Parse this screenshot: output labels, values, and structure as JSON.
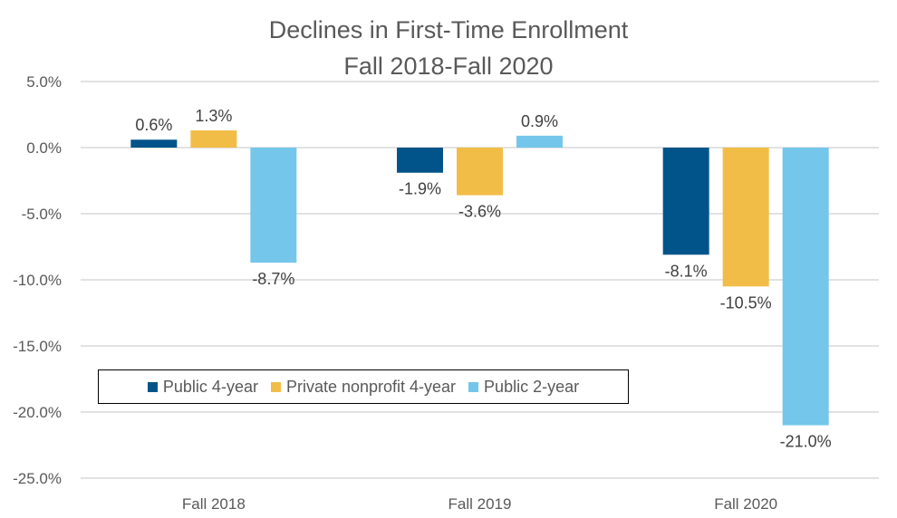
{
  "chart_data": {
    "type": "bar",
    "title": "Declines in First-Time Enrollment",
    "subtitle": "Fall 2018-Fall 2020",
    "categories": [
      "Fall 2018",
      "Fall 2019",
      "Fall 2020"
    ],
    "series": [
      {
        "name": "Public 4-year",
        "values": [
          0.6,
          -1.9,
          -8.1
        ],
        "color": "#00548A"
      },
      {
        "name": "Private nonprofit 4-year",
        "values": [
          1.3,
          -3.6,
          -10.5
        ],
        "color": "#F2BD47"
      },
      {
        "name": "Public 2-year",
        "values": [
          -8.7,
          0.9,
          -21.0
        ],
        "color": "#74C6EA"
      }
    ],
    "ylim": [
      -25,
      5
    ],
    "yticks": [
      "5.0%",
      "0.0%",
      "-5.0%",
      "-10.0%",
      "-15.0%",
      "-20.0%",
      "-25.0%"
    ],
    "ytick_values": [
      5,
      0,
      -5,
      -10,
      -15,
      -20,
      -25
    ],
    "grid": true,
    "legend_placement": "bottom-left inside",
    "xlabel": "",
    "ylabel": ""
  }
}
